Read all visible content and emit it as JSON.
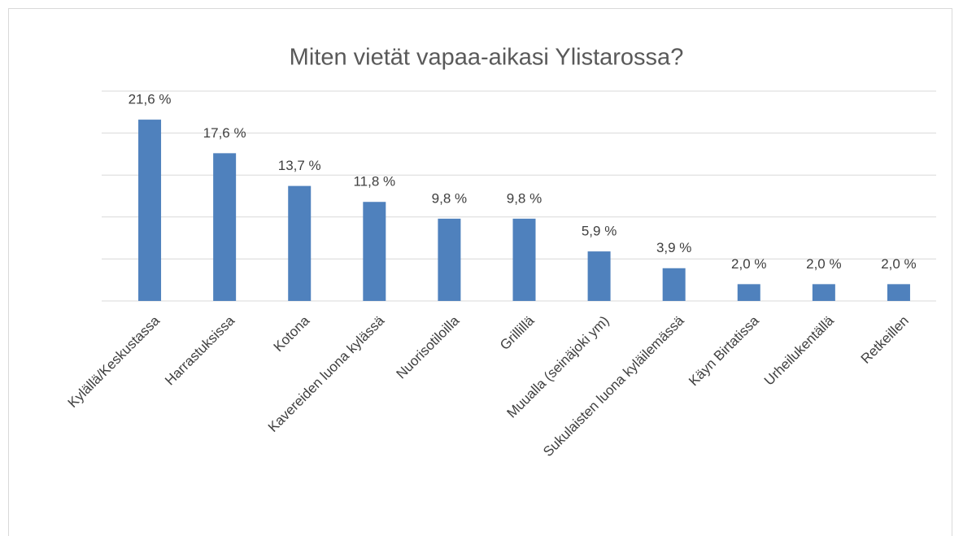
{
  "chart_data": {
    "type": "bar",
    "title": "Miten vietät vapaa-aikasi Ylistarossa?",
    "categories": [
      "Kylällä/Keskustassa",
      "Harrastuksissa",
      "Kotona",
      "Kavereiden luona kylässä",
      "Nuorisotiloilla",
      "Grillillä",
      "Muualla (seinäjoki ym)",
      "Sukulaisten luona kyläilemässä",
      "Käyn Birtatissa",
      "Urheilukentällä",
      "Retkeillen"
    ],
    "values": [
      21.6,
      17.6,
      13.7,
      11.8,
      9.8,
      9.8,
      5.9,
      3.9,
      2.0,
      2.0,
      2.0
    ],
    "value_labels": [
      "21,6 %",
      "17,6 %",
      "13,7 %",
      "11,8 %",
      "9,8 %",
      "9,8 %",
      "5,9 %",
      "3,9 %",
      "2,0 %",
      "2,0 %",
      "2,0 %"
    ],
    "color": "#4f81bd",
    "ylim": [
      0,
      25
    ],
    "yticks": [
      0,
      5,
      10,
      15,
      20,
      25
    ],
    "grid": true
  }
}
